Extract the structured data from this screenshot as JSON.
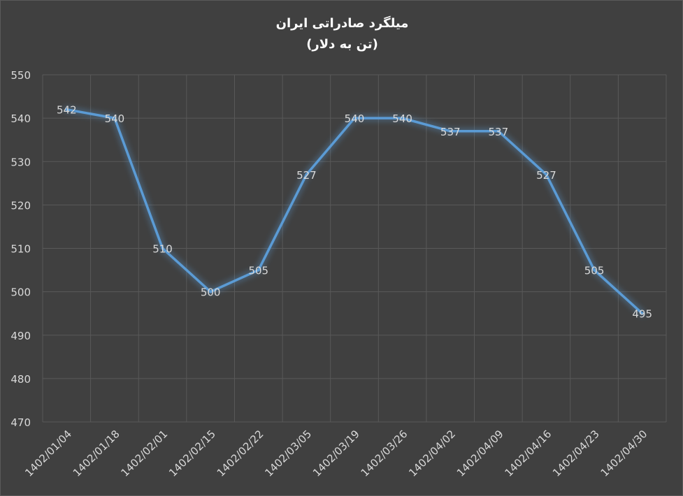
{
  "chart_data": {
    "type": "line",
    "title": "میلگرد صادراتی ایران",
    "subtitle": "(تن به دلار)",
    "xlabel": "",
    "ylabel": "",
    "categories": [
      "1402/01/04",
      "1402/01/18",
      "1402/02/01",
      "1402/02/15",
      "1402/02/22",
      "1402/03/05",
      "1402/03/19",
      "1402/03/26",
      "1402/04/02",
      "1402/04/09",
      "1402/04/16",
      "1402/04/23",
      "1402/04/30"
    ],
    "series": [
      {
        "values": [
          542,
          540,
          510,
          500,
          505,
          527,
          540,
          540,
          537,
          537,
          527,
          505,
          495
        ],
        "color": "#5b9bd5"
      }
    ],
    "ylim": [
      470,
      550
    ],
    "yticks": [
      "470",
      "480",
      "490",
      "500",
      "510",
      "520",
      "530",
      "540",
      "550"
    ],
    "grid": true,
    "data_labels": true,
    "legend": "none",
    "background": "#404040",
    "text_color": "#d9d9d9",
    "grid_color": "#595959"
  }
}
